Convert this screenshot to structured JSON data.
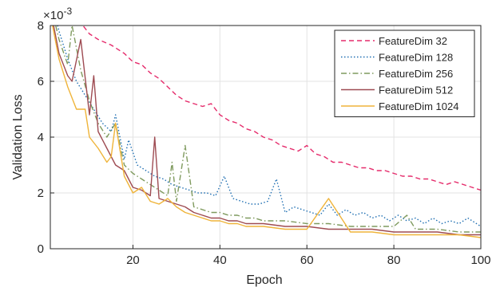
{
  "chart_data": {
    "type": "line",
    "title": "",
    "xlabel": "Epoch",
    "ylabel": "Validation Loss",
    "xlim": [
      1,
      100
    ],
    "ylim": [
      0,
      0.008
    ],
    "y_exponent_label": "×10",
    "y_exponent_power": "-3",
    "x_ticks": [
      20,
      40,
      60,
      80,
      100
    ],
    "x_tick_labels": [
      "20",
      "40",
      "60",
      "80",
      "100"
    ],
    "y_ticks": [
      0,
      0.002,
      0.004,
      0.006,
      0.008
    ],
    "y_tick_labels": [
      "0",
      "2",
      "4",
      "6",
      "8"
    ],
    "grid": true,
    "legend_position": "top-right",
    "series": [
      {
        "name": "FeatureDim 32",
        "color": "#e52b6b",
        "dash": "dashed",
        "x": [
          1,
          5,
          8,
          10,
          12,
          15,
          18,
          20,
          22,
          24,
          26,
          28,
          30,
          32,
          34,
          36,
          38,
          40,
          42,
          44,
          46,
          48,
          50,
          52,
          54,
          56,
          58,
          60,
          62,
          64,
          66,
          68,
          70,
          72,
          74,
          76,
          78,
          80,
          82,
          84,
          86,
          88,
          90,
          92,
          94,
          96,
          98,
          100
        ],
        "y": [
          0.0092,
          0.0085,
          0.0081,
          0.0077,
          0.0075,
          0.0073,
          0.007,
          0.0067,
          0.0066,
          0.0063,
          0.0061,
          0.0058,
          0.0055,
          0.0053,
          0.0052,
          0.0051,
          0.0052,
          0.0048,
          0.0046,
          0.0045,
          0.0043,
          0.0042,
          0.004,
          0.0039,
          0.0037,
          0.0036,
          0.0035,
          0.0037,
          0.0034,
          0.0033,
          0.0031,
          0.0031,
          0.003,
          0.0029,
          0.0029,
          0.0028,
          0.0028,
          0.0027,
          0.0026,
          0.0026,
          0.0025,
          0.0025,
          0.0024,
          0.0023,
          0.0024,
          0.0023,
          0.0022,
          0.0021
        ]
      },
      {
        "name": "FeatureDim 128",
        "color": "#1f6fb2",
        "dash": "dotted",
        "x": [
          1,
          3,
          5,
          7,
          9,
          11,
          13,
          15,
          16,
          18,
          19,
          21,
          23,
          25,
          27,
          29,
          31,
          33,
          35,
          37,
          39,
          41,
          43,
          45,
          47,
          49,
          51,
          53,
          55,
          57,
          59,
          61,
          63,
          65,
          67,
          69,
          71,
          73,
          75,
          77,
          79,
          81,
          83,
          85,
          87,
          89,
          91,
          93,
          95,
          97,
          100
        ],
        "y": [
          0.009,
          0.0078,
          0.0068,
          0.006,
          0.0055,
          0.005,
          0.0045,
          0.0042,
          0.0048,
          0.0032,
          0.0039,
          0.003,
          0.0028,
          0.0026,
          0.0025,
          0.0023,
          0.0022,
          0.0021,
          0.002,
          0.002,
          0.0019,
          0.0026,
          0.0018,
          0.0017,
          0.0016,
          0.0016,
          0.0017,
          0.0025,
          0.0013,
          0.0015,
          0.0014,
          0.0013,
          0.0012,
          0.0016,
          0.0012,
          0.0014,
          0.0012,
          0.0013,
          0.0011,
          0.0012,
          0.001,
          0.0012,
          0.001,
          0.0011,
          0.0009,
          0.0011,
          0.0009,
          0.001,
          0.0009,
          0.0011,
          0.0008
        ]
      },
      {
        "name": "FeatureDim 256",
        "color": "#7f9a5e",
        "dash": "dashdot",
        "x": [
          1,
          3,
          5,
          6,
          8,
          10,
          12,
          14,
          16,
          18,
          20,
          22,
          24,
          26,
          28,
          29,
          30,
          32,
          34,
          36,
          38,
          40,
          42,
          44,
          46,
          48,
          50,
          55,
          60,
          65,
          70,
          75,
          80,
          83,
          85,
          90,
          95,
          100
        ],
        "y": [
          0.0088,
          0.0075,
          0.0066,
          0.008,
          0.0064,
          0.0053,
          0.0045,
          0.004,
          0.0045,
          0.003,
          0.0027,
          0.0025,
          0.0023,
          0.0021,
          0.0019,
          0.0031,
          0.0017,
          0.0037,
          0.0015,
          0.0014,
          0.0013,
          0.0013,
          0.0012,
          0.0012,
          0.0011,
          0.0011,
          0.001,
          0.001,
          0.0009,
          0.0009,
          0.0008,
          0.0008,
          0.0008,
          0.0012,
          0.0007,
          0.0007,
          0.0006,
          0.0006
        ]
      },
      {
        "name": "FeatureDim 512",
        "color": "#9e4b52",
        "dash": "solid",
        "x": [
          1,
          3,
          5,
          6,
          8,
          10,
          11,
          12,
          14,
          16,
          18,
          20,
          22,
          24,
          25,
          26,
          28,
          30,
          32,
          34,
          36,
          38,
          40,
          42,
          44,
          46,
          48,
          50,
          55,
          60,
          65,
          70,
          75,
          80,
          85,
          90,
          95,
          100
        ],
        "y": [
          0.0086,
          0.007,
          0.0062,
          0.006,
          0.0075,
          0.0048,
          0.0062,
          0.0042,
          0.0036,
          0.003,
          0.0028,
          0.0022,
          0.0021,
          0.0019,
          0.004,
          0.0018,
          0.0017,
          0.0016,
          0.0015,
          0.0013,
          0.0012,
          0.0011,
          0.0011,
          0.001,
          0.001,
          0.0009,
          0.0009,
          0.0009,
          0.0008,
          0.0008,
          0.0007,
          0.0007,
          0.0007,
          0.0006,
          0.0006,
          0.0006,
          0.0005,
          0.0005
        ]
      },
      {
        "name": "FeatureDim 1024",
        "color": "#efb43a",
        "dash": "solid",
        "x": [
          1,
          3,
          5,
          7,
          9,
          10,
          12,
          14,
          15,
          16,
          18,
          20,
          22,
          24,
          26,
          28,
          30,
          32,
          34,
          36,
          38,
          40,
          42,
          44,
          46,
          48,
          50,
          55,
          60,
          65,
          70,
          75,
          80,
          85,
          90,
          95,
          100
        ],
        "y": [
          0.0084,
          0.0068,
          0.0058,
          0.005,
          0.005,
          0.004,
          0.0036,
          0.0031,
          0.0033,
          0.0045,
          0.0026,
          0.002,
          0.0022,
          0.0017,
          0.0016,
          0.0018,
          0.0015,
          0.0013,
          0.0012,
          0.0011,
          0.001,
          0.001,
          0.0009,
          0.0009,
          0.0008,
          0.0008,
          0.0008,
          0.0007,
          0.0007,
          0.0018,
          0.0006,
          0.0006,
          0.0005,
          0.0005,
          0.0005,
          0.0005,
          0.0004
        ]
      }
    ]
  }
}
